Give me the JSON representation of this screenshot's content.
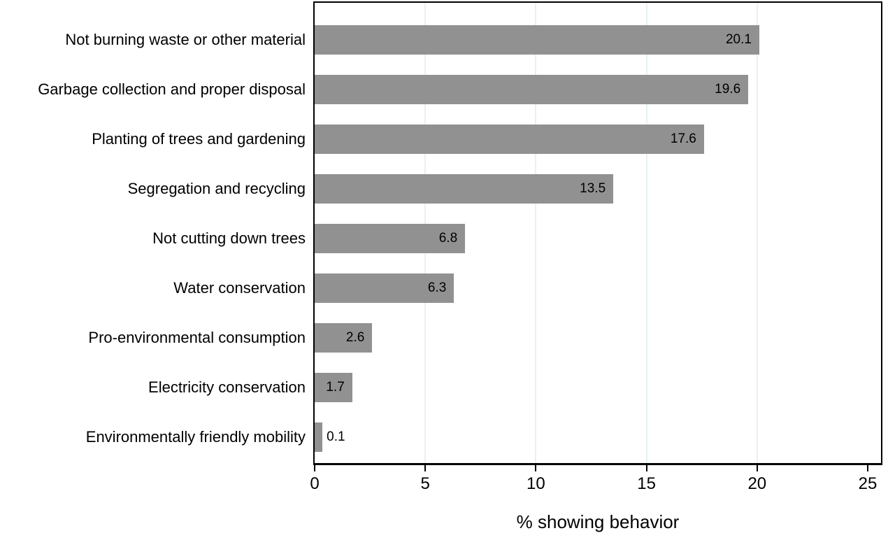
{
  "chart_data": {
    "type": "bar",
    "orientation": "horizontal",
    "title": "",
    "xlabel": "% showing behavior",
    "ylabel": "",
    "categories": [
      "Not burning waste or other material",
      "Garbage collection and proper disposal",
      "Planting of trees and gardening",
      "Segregation and recycling",
      "Not cutting down trees",
      "Water conservation",
      "Pro-environmental consumption",
      "Electricity conservation",
      "Environmentally friendly mobility"
    ],
    "values": [
      20.1,
      19.6,
      17.6,
      13.5,
      6.8,
      6.3,
      2.6,
      1.7,
      0.1
    ],
    "value_labels": [
      "20.1",
      "19.6",
      "17.6",
      "13.5",
      "6.8",
      "6.3",
      "2.6",
      "1.7",
      "0.1"
    ],
    "xlim": [
      0,
      25.6
    ],
    "xticks": [
      0,
      5,
      10,
      15,
      20,
      25
    ],
    "xtick_labels": [
      "0",
      "5",
      "10",
      "15",
      "20",
      "25"
    ],
    "gridline_values": [
      5,
      10,
      15,
      20
    ],
    "grid": true,
    "legend": false,
    "colors": {
      "bar": "#919191",
      "gridline": "#e8f1f2",
      "axis": "#000000",
      "text": "#000000",
      "background": "#ffffff"
    }
  }
}
